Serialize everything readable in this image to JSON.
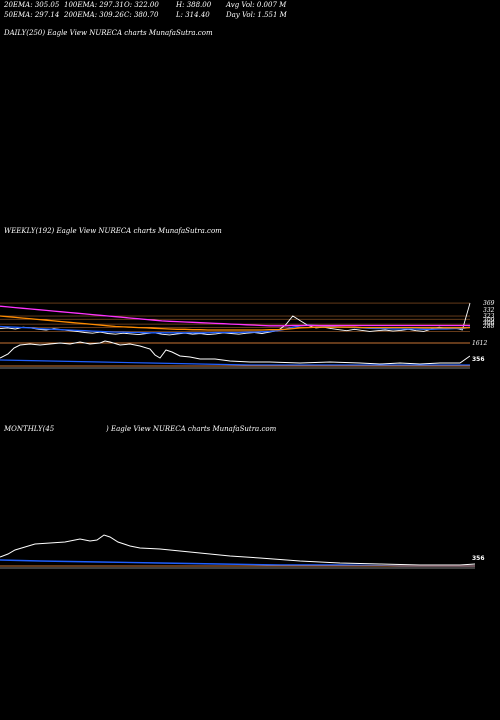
{
  "header": {
    "row1": [
      "20EMA: 305.05",
      "100EMA: 297.31",
      "O: 322.00",
      "H: 388.00",
      "Avg Vol: 0.007 M"
    ],
    "row2": [
      "50EMA: 297.14",
      "200EMA: 309.26",
      "C: 380.70",
      "L: 314.40",
      "Day Vol: 1.551 M"
    ]
  },
  "panels": {
    "daily": {
      "label": "DAILY(250) Eagle   View  NURECA charts MunafaSutra.com"
    },
    "weekly": {
      "label": "WEEKLY(192) Eagle   View  NURECA charts MunafaSutra.com"
    },
    "monthly": {
      "label_left": "MONTHLY(45",
      "label_right": ") Eagle   View  NURECA charts MunafaSutra.com"
    }
  },
  "chart_data": [
    {
      "type": "line",
      "panel": "weekly",
      "price_levels": [
        "369",
        "332",
        "323",
        "309",
        "300",
        "288"
      ],
      "level_color": "#c87533",
      "series": [
        {
          "color": "#ffffff",
          "values": [
            296,
            298,
            295,
            300,
            298,
            294,
            292,
            296,
            293,
            290,
            288,
            285,
            283,
            286,
            282,
            280,
            283,
            281,
            279,
            282,
            284,
            280,
            278,
            281,
            283,
            280,
            282,
            279,
            281,
            284,
            282,
            280,
            283,
            285,
            282,
            286,
            290,
            305,
            332,
            318,
            305,
            298,
            300,
            296,
            293,
            290,
            294,
            291,
            288,
            290,
            292,
            289,
            291,
            294,
            290,
            288,
            295,
            300,
            296,
            298,
            292,
            369
          ]
        },
        {
          "color": "#1f5fff",
          "values": [
            302,
            301,
            300,
            299,
            298,
            296,
            295,
            294,
            293,
            292,
            291,
            290,
            289,
            288,
            287,
            286,
            286,
            285,
            285,
            284,
            284,
            284,
            284,
            284,
            284,
            284,
            284,
            284,
            285,
            285,
            285,
            285,
            286,
            286,
            287,
            288,
            290,
            294,
            300,
            304,
            306,
            305,
            304,
            302,
            301,
            300,
            299,
            298,
            297,
            296,
            296,
            295,
            295,
            295,
            295,
            294,
            294,
            295,
            295,
            296,
            296,
            300
          ]
        },
        {
          "color": "#ff33ff",
          "values": [
            360,
            358,
            356,
            354,
            352,
            350,
            348,
            346,
            344,
            342,
            340,
            338,
            336,
            334,
            332,
            330,
            328,
            326,
            324,
            322,
            320,
            318,
            317,
            316,
            315,
            314,
            313,
            312,
            311,
            310,
            309,
            308,
            307,
            306,
            305,
            304,
            304,
            304,
            305,
            305,
            305,
            305,
            305,
            305,
            305,
            305,
            305,
            305,
            305,
            305,
            305,
            305,
            305,
            305,
            305,
            305,
            305,
            305,
            305,
            305,
            305,
            305
          ]
        },
        {
          "color": "#ff8c00",
          "values": [
            332,
            330,
            328,
            326,
            324,
            322,
            320,
            318,
            316,
            314,
            312,
            310,
            308,
            306,
            304,
            302,
            301,
            300,
            299,
            298,
            297,
            296,
            295,
            294,
            294,
            293,
            293,
            292,
            292,
            292,
            292,
            292,
            292,
            292,
            292,
            293,
            293,
            294,
            296,
            298,
            299,
            300,
            300,
            300,
            300,
            300,
            300,
            299,
            299,
            299,
            299,
            299,
            299,
            299,
            299,
            298,
            298,
            298,
            298,
            298,
            298,
            299
          ]
        }
      ],
      "volume_levels": [
        "1612"
      ]
    },
    {
      "type": "line",
      "panel": "weekly-indicator",
      "badge": "356"
    },
    {
      "type": "line",
      "panel": "monthly",
      "badge": "356"
    }
  ]
}
